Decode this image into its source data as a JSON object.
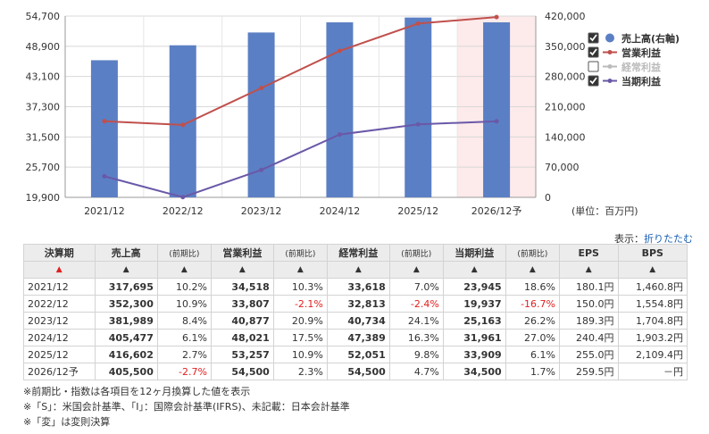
{
  "chart_data": {
    "type": "bar",
    "categories": [
      "2021/12",
      "2022/12",
      "2023/12",
      "2024/12",
      "2025/12",
      "2026/12予"
    ],
    "forecast_index": 5,
    "left_axis": {
      "ticks": [
        "54,700",
        "48,900",
        "43,100",
        "37,300",
        "31,500",
        "25,700",
        "19,900"
      ],
      "min": 19900,
      "max": 54700
    },
    "right_axis": {
      "ticks": [
        "420,000",
        "350,000",
        "280,000",
        "210,000",
        "140,000",
        "70,000",
        "0"
      ],
      "min": 0,
      "max": 420000
    },
    "series": [
      {
        "name": "売上高(右軸)",
        "type": "bar",
        "axis": "right",
        "color": "#5b7fc4",
        "values": [
          317695,
          352300,
          381989,
          405477,
          416602,
          405500
        ],
        "checked": true
      },
      {
        "name": "営業利益",
        "type": "line",
        "axis": "left",
        "color": "#c0504d",
        "values": [
          34518,
          33807,
          40877,
          48021,
          53257,
          54500
        ],
        "checked": true
      },
      {
        "name": "経常利益",
        "type": "line",
        "axis": "left",
        "color": "#bbbbbb",
        "values": [
          33618,
          32813,
          40734,
          47389,
          52051,
          54500
        ],
        "checked": false
      },
      {
        "name": "当期利益",
        "type": "line",
        "axis": "left",
        "color": "#6a58a8",
        "values": [
          23945,
          19937,
          25163,
          31961,
          33909,
          34500
        ],
        "checked": true
      }
    ]
  },
  "unit_label": "(単位：百万円)",
  "display": {
    "label": "表示：",
    "link": "折りたたむ"
  },
  "table": {
    "headers": [
      "決算期",
      "売上高",
      "(前期比)",
      "営業利益",
      "(前期比)",
      "経常利益",
      "(前期比)",
      "当期利益",
      "(前期比)",
      "EPS",
      "BPS"
    ],
    "sort_marks": [
      "▲",
      "▲",
      "▲",
      "▲",
      "▲",
      "▲",
      "▲",
      "▲",
      "▲",
      "▲",
      "▲"
    ],
    "rows": [
      [
        "2021/12",
        "317,695",
        "10.2%",
        "34,518",
        "10.3%",
        "33,618",
        "7.0%",
        "23,945",
        "18.6%",
        "180.1円",
        "1,460.8円"
      ],
      [
        "2022/12",
        "352,300",
        "10.9%",
        "33,807",
        "-2.1%",
        "32,813",
        "-2.4%",
        "19,937",
        "-16.7%",
        "150.0円",
        "1,554.8円"
      ],
      [
        "2023/12",
        "381,989",
        "8.4%",
        "40,877",
        "20.9%",
        "40,734",
        "24.1%",
        "25,163",
        "26.2%",
        "189.3円",
        "1,704.8円"
      ],
      [
        "2024/12",
        "405,477",
        "6.1%",
        "48,021",
        "17.5%",
        "47,389",
        "16.3%",
        "31,961",
        "27.0%",
        "240.4円",
        "1,903.2円"
      ],
      [
        "2025/12",
        "416,602",
        "2.7%",
        "53,257",
        "10.9%",
        "52,051",
        "9.8%",
        "33,909",
        "6.1%",
        "255.0円",
        "2,109.4円"
      ],
      [
        "2026/12予",
        "405,500",
        "-2.7%",
        "54,500",
        "2.3%",
        "54,500",
        "4.7%",
        "34,500",
        "1.7%",
        "259.5円",
        "－円"
      ]
    ]
  },
  "notes": [
    "※前期比・指数は各項目を12ヶ月換算した値を表示",
    "※「S」：米国会計基準、「I」：国際会計基準(IFRS)、未記載：日本会計基準",
    "※「変」は変則決算"
  ]
}
